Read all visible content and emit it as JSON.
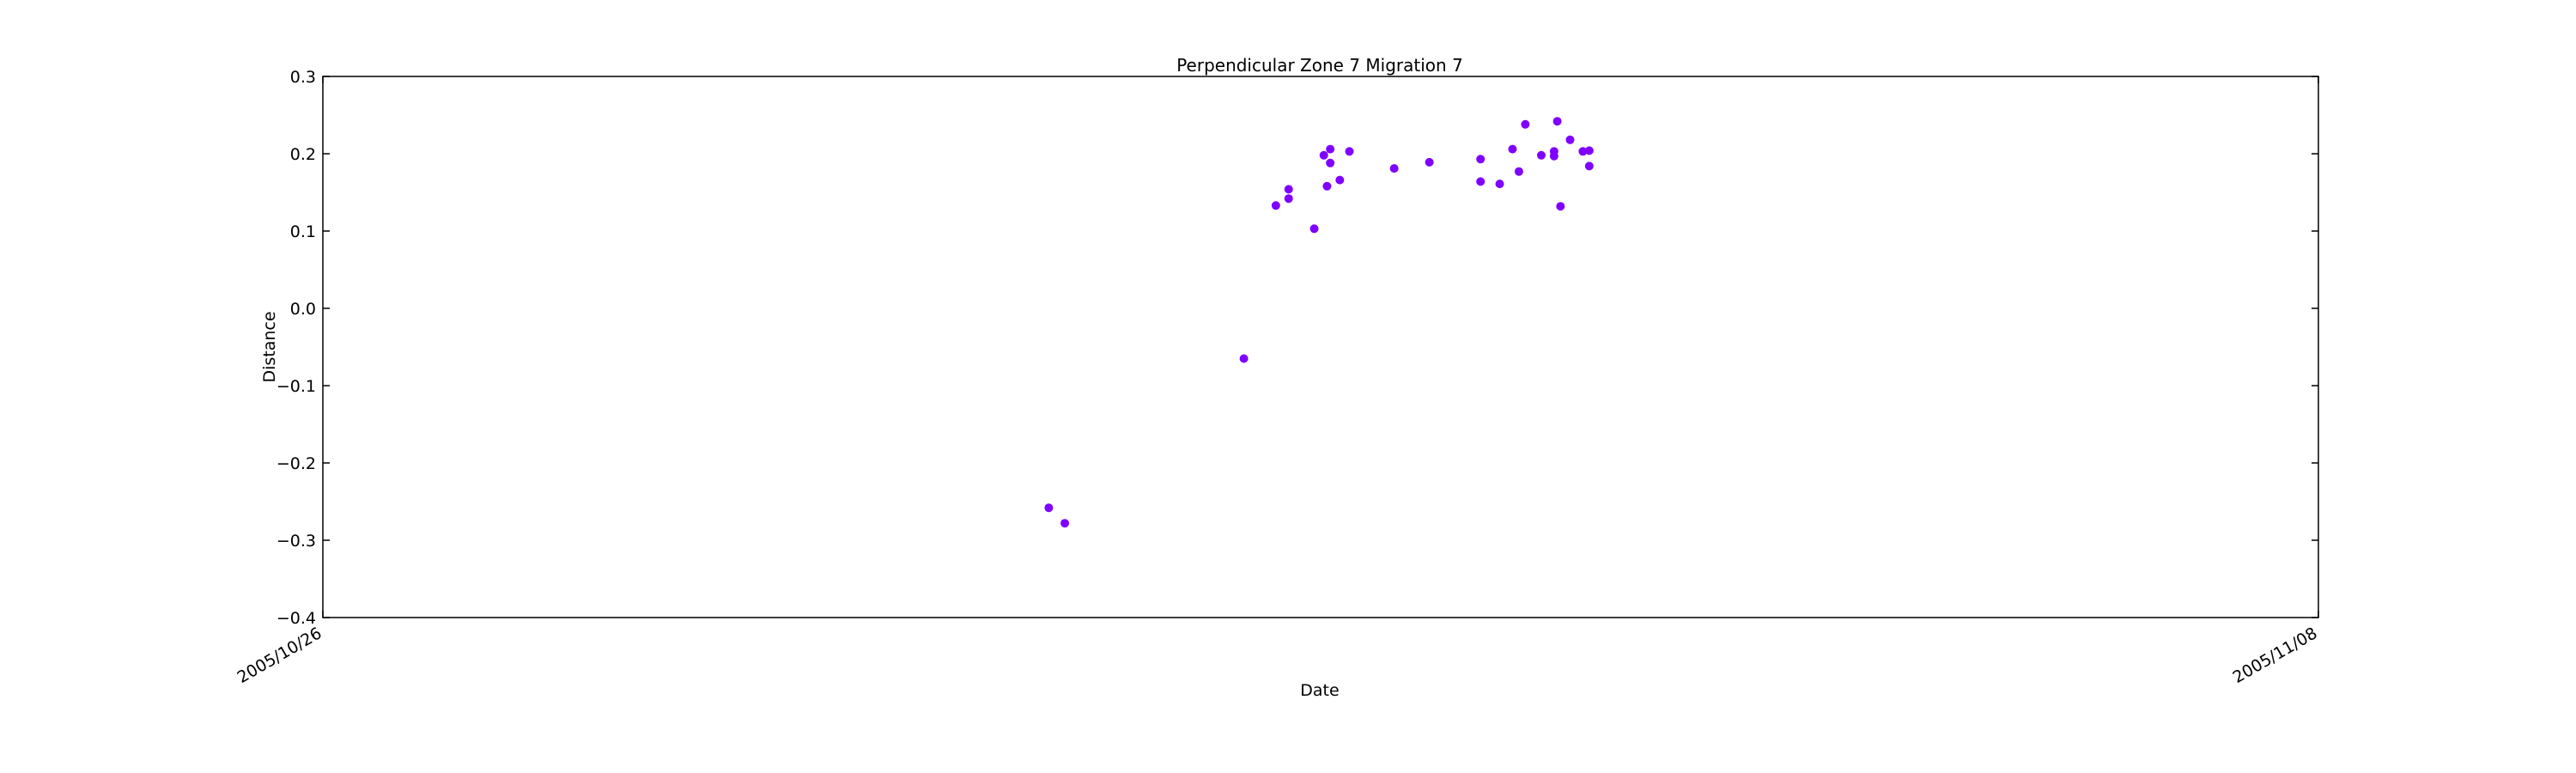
{
  "chart_data": {
    "type": "scatter",
    "title": "Perpendicular Zone 7 Migration 7",
    "xlabel": "Date",
    "ylabel": "Distance",
    "xlim": [
      "2005/10/26",
      "2005/11/08"
    ],
    "ylim": [
      -0.4,
      0.3
    ],
    "x_ticks": [
      "2005/10/26",
      "2005/11/08"
    ],
    "y_ticks": [
      "0.3",
      "0.2",
      "0.1",
      "0.0",
      "−0.1",
      "−0.2",
      "−0.3",
      "−0.4"
    ],
    "marker_color": "#7f00ff",
    "grid": false,
    "points": [
      {
        "x": "2005/10/30 17:30",
        "y": -0.258
      },
      {
        "x": "2005/10/30 20:00",
        "y": -0.278
      },
      {
        "x": "2005/11/01 00:00",
        "y": -0.065
      },
      {
        "x": "2005/11/01 05:00",
        "y": 0.133
      },
      {
        "x": "2005/11/01 07:00",
        "y": 0.142
      },
      {
        "x": "2005/11/01 07:00",
        "y": 0.154
      },
      {
        "x": "2005/11/01 11:00",
        "y": 0.103
      },
      {
        "x": "2005/11/01 12:30",
        "y": 0.198
      },
      {
        "x": "2005/11/01 13:00",
        "y": 0.158
      },
      {
        "x": "2005/11/01 13:30",
        "y": 0.188
      },
      {
        "x": "2005/11/01 13:30",
        "y": 0.206
      },
      {
        "x": "2005/11/01 15:00",
        "y": 0.166
      },
      {
        "x": "2005/11/01 16:30",
        "y": 0.203
      },
      {
        "x": "2005/11/01 23:30",
        "y": 0.181
      },
      {
        "x": "2005/11/02 05:00",
        "y": 0.189
      },
      {
        "x": "2005/11/02 13:00",
        "y": 0.164
      },
      {
        "x": "2005/11/02 13:00",
        "y": 0.193
      },
      {
        "x": "2005/11/02 16:00",
        "y": 0.161
      },
      {
        "x": "2005/11/02 18:00",
        "y": 0.206
      },
      {
        "x": "2005/11/02 19:00",
        "y": 0.177
      },
      {
        "x": "2005/11/02 20:00",
        "y": 0.238
      },
      {
        "x": "2005/11/02 22:30",
        "y": 0.198
      },
      {
        "x": "2005/11/03 00:30",
        "y": 0.203
      },
      {
        "x": "2005/11/03 00:30",
        "y": 0.197
      },
      {
        "x": "2005/11/03 01:00",
        "y": 0.242
      },
      {
        "x": "2005/11/03 01:30",
        "y": 0.132
      },
      {
        "x": "2005/11/03 03:00",
        "y": 0.218
      },
      {
        "x": "2005/11/03 05:00",
        "y": 0.203
      },
      {
        "x": "2005/11/03 06:00",
        "y": 0.204
      },
      {
        "x": "2005/11/03 06:00",
        "y": 0.184
      }
    ]
  }
}
